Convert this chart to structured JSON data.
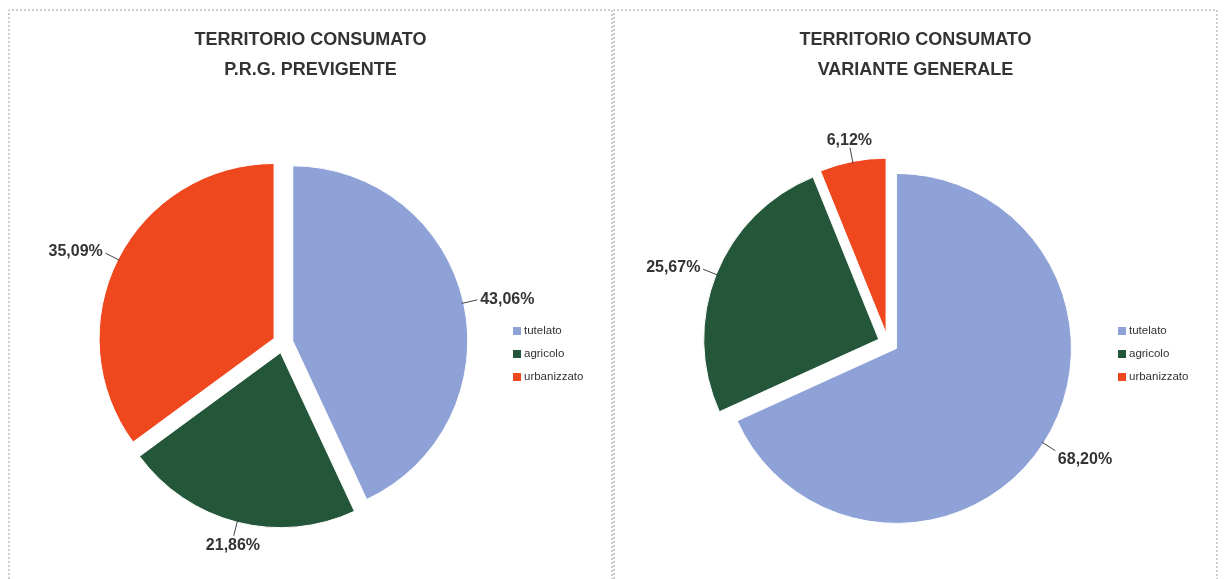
{
  "chart_data": [
    {
      "type": "pie",
      "title": "TERRITORIO CONSUMATO",
      "subtitle": "P.R.G. PREVIGENTE",
      "categories": [
        "tutelato",
        "agricolo",
        "urbanizzato"
      ],
      "values": [
        43.06,
        21.86,
        35.09
      ],
      "colors": [
        "#8ea2d8",
        "#24563a",
        "#f0481e"
      ],
      "value_labels": [
        "43,06%",
        "21,86%",
        "35,09%"
      ],
      "legend": "right"
    },
    {
      "type": "pie",
      "title": "TERRITORIO CONSUMATO",
      "subtitle": "VARIANTE GENERALE",
      "categories": [
        "tutelato",
        "agricolo",
        "urbanizzato"
      ],
      "values": [
        68.2,
        25.67,
        6.12
      ],
      "colors": [
        "#8ea2d8",
        "#24563a",
        "#f0481e"
      ],
      "value_labels": [
        "68,20%",
        "25,67%",
        "6,12%"
      ],
      "legend": "right"
    }
  ]
}
